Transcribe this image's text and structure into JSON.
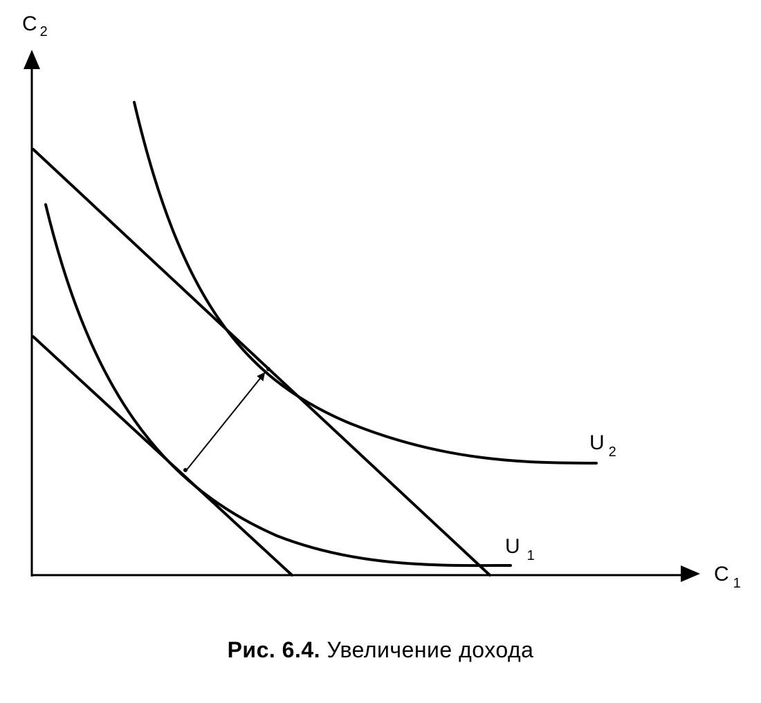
{
  "axes": {
    "y": {
      "main": "C",
      "sub": "2"
    },
    "x": {
      "main": "C",
      "sub": "1"
    }
  },
  "curves": {
    "u1": {
      "main": "U",
      "sub": "1"
    },
    "u2": {
      "main": "U",
      "sub": "2"
    }
  },
  "caption": {
    "number": "Рис. 6.4.",
    "text": "Увеличение дохода"
  }
}
